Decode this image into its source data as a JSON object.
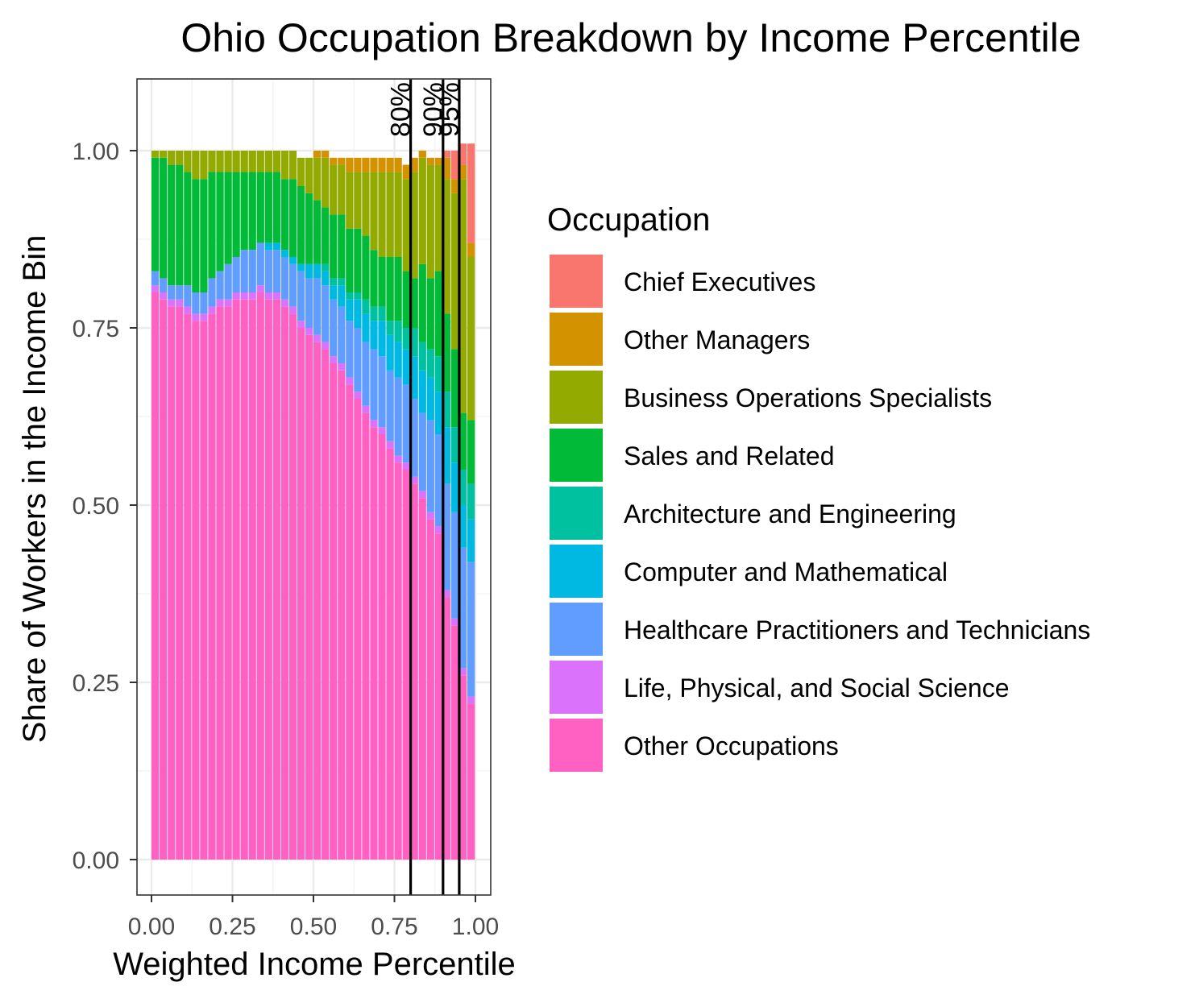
{
  "chart_data": {
    "type": "bar",
    "stacked": true,
    "title": "Ohio Occupation Breakdown by Income Percentile",
    "xlabel": "Weighted Income Percentile",
    "ylabel": "Share of Workers in the Income Bin",
    "xlim": [
      0,
      1
    ],
    "ylim": [
      0,
      1
    ],
    "x_ticks": [
      "0.00",
      "0.25",
      "0.50",
      "0.75",
      "1.00"
    ],
    "y_ticks": [
      "0.00",
      "0.25",
      "0.50",
      "0.75",
      "1.00"
    ],
    "grid": true,
    "legend_position": "right",
    "legend_title": "Occupation",
    "reference_lines": [
      {
        "x": 0.8,
        "label": "80%"
      },
      {
        "x": 0.9,
        "label": "90%"
      },
      {
        "x": 0.95,
        "label": "95%"
      }
    ],
    "x": [
      0.0,
      0.025,
      0.05,
      0.075,
      0.1,
      0.125,
      0.15,
      0.175,
      0.2,
      0.225,
      0.25,
      0.275,
      0.3,
      0.325,
      0.35,
      0.375,
      0.4,
      0.425,
      0.45,
      0.475,
      0.5,
      0.525,
      0.55,
      0.575,
      0.6,
      0.625,
      0.65,
      0.675,
      0.7,
      0.725,
      0.75,
      0.775,
      0.8,
      0.825,
      0.85,
      0.875,
      0.9,
      0.925,
      0.95,
      0.975
    ],
    "series": [
      {
        "name": "Other Occupations",
        "color": "#FF61C3",
        "values": [
          0.8,
          0.79,
          0.78,
          0.78,
          0.77,
          0.76,
          0.76,
          0.77,
          0.78,
          0.78,
          0.79,
          0.79,
          0.79,
          0.8,
          0.79,
          0.79,
          0.78,
          0.77,
          0.75,
          0.74,
          0.73,
          0.72,
          0.7,
          0.69,
          0.67,
          0.65,
          0.63,
          0.61,
          0.6,
          0.58,
          0.56,
          0.55,
          0.53,
          0.51,
          0.48,
          0.46,
          0.37,
          0.33,
          0.26,
          0.22
        ]
      },
      {
        "name": "Life, Physical, and Social Science",
        "color": "#DB72FB",
        "values": [
          0.01,
          0.01,
          0.01,
          0.01,
          0.01,
          0.01,
          0.01,
          0.01,
          0.01,
          0.01,
          0.01,
          0.01,
          0.01,
          0.01,
          0.01,
          0.01,
          0.01,
          0.01,
          0.01,
          0.01,
          0.01,
          0.01,
          0.01,
          0.01,
          0.01,
          0.01,
          0.01,
          0.01,
          0.01,
          0.01,
          0.01,
          0.01,
          0.01,
          0.01,
          0.01,
          0.01,
          0.01,
          0.01,
          0.01,
          0.01
        ]
      },
      {
        "name": "Healthcare Practitioners and Technicians",
        "color": "#619CFF",
        "values": [
          0.02,
          0.02,
          0.02,
          0.02,
          0.03,
          0.03,
          0.03,
          0.04,
          0.04,
          0.05,
          0.05,
          0.06,
          0.06,
          0.06,
          0.06,
          0.06,
          0.06,
          0.06,
          0.07,
          0.07,
          0.08,
          0.08,
          0.08,
          0.08,
          0.08,
          0.09,
          0.09,
          0.1,
          0.1,
          0.1,
          0.11,
          0.11,
          0.11,
          0.11,
          0.13,
          0.13,
          0.15,
          0.15,
          0.17,
          0.19
        ]
      },
      {
        "name": "Computer and Mathematical",
        "color": "#00B9E3",
        "values": [
          0.0,
          0.0,
          0.0,
          0.0,
          0.0,
          0.0,
          0.0,
          0.0,
          0.0,
          0.0,
          0.0,
          0.0,
          0.0,
          0.0,
          0.01,
          0.01,
          0.01,
          0.01,
          0.01,
          0.02,
          0.02,
          0.02,
          0.02,
          0.03,
          0.03,
          0.04,
          0.04,
          0.04,
          0.05,
          0.05,
          0.05,
          0.05,
          0.06,
          0.06,
          0.06,
          0.06,
          0.08,
          0.07,
          0.06,
          0.06
        ]
      },
      {
        "name": "Architecture and Engineering",
        "color": "#00C19F",
        "values": [
          0.0,
          0.0,
          0.0,
          0.0,
          0.0,
          0.0,
          0.0,
          0.0,
          0.0,
          0.0,
          0.0,
          0.0,
          0.0,
          0.0,
          0.0,
          0.0,
          0.0,
          0.0,
          0.0,
          0.0,
          0.0,
          0.01,
          0.01,
          0.01,
          0.01,
          0.01,
          0.02,
          0.02,
          0.02,
          0.02,
          0.03,
          0.03,
          0.04,
          0.04,
          0.04,
          0.05,
          0.05,
          0.05,
          0.05,
          0.05
        ]
      },
      {
        "name": "Sales and Related",
        "color": "#00BA38",
        "values": [
          0.16,
          0.17,
          0.17,
          0.17,
          0.16,
          0.16,
          0.16,
          0.15,
          0.14,
          0.13,
          0.12,
          0.11,
          0.11,
          0.1,
          0.1,
          0.1,
          0.1,
          0.11,
          0.11,
          0.1,
          0.09,
          0.08,
          0.09,
          0.09,
          0.09,
          0.09,
          0.09,
          0.08,
          0.07,
          0.09,
          0.09,
          0.08,
          0.07,
          0.11,
          0.1,
          0.12,
          0.11,
          0.11,
          0.08,
          0.09
        ]
      },
      {
        "name": "Business Operations Specialists",
        "color": "#93AA00",
        "values": [
          0.01,
          0.01,
          0.02,
          0.02,
          0.03,
          0.04,
          0.04,
          0.03,
          0.03,
          0.03,
          0.03,
          0.03,
          0.03,
          0.03,
          0.03,
          0.03,
          0.04,
          0.04,
          0.04,
          0.05,
          0.06,
          0.07,
          0.07,
          0.07,
          0.08,
          0.08,
          0.09,
          0.11,
          0.12,
          0.12,
          0.12,
          0.13,
          0.15,
          0.15,
          0.16,
          0.15,
          0.19,
          0.22,
          0.33,
          0.23
        ]
      },
      {
        "name": "Other Managers",
        "color": "#D39200",
        "values": [
          0.0,
          0.0,
          0.0,
          0.0,
          0.0,
          0.0,
          0.0,
          0.0,
          0.0,
          0.0,
          0.0,
          0.0,
          0.0,
          0.0,
          0.0,
          0.0,
          0.0,
          0.0,
          0.0,
          0.0,
          0.01,
          0.01,
          0.01,
          0.01,
          0.02,
          0.02,
          0.02,
          0.02,
          0.02,
          0.02,
          0.02,
          0.02,
          0.02,
          0.01,
          0.01,
          0.01,
          0.03,
          0.02,
          0.02,
          0.02
        ]
      },
      {
        "name": "Chief Executives",
        "color": "#F8766D",
        "values": [
          0.0,
          0.0,
          0.0,
          0.0,
          0.0,
          0.0,
          0.0,
          0.0,
          0.0,
          0.0,
          0.0,
          0.0,
          0.0,
          0.0,
          0.0,
          0.0,
          0.0,
          0.0,
          0.0,
          0.0,
          0.0,
          0.0,
          0.0,
          0.0,
          0.0,
          0.0,
          0.0,
          0.0,
          0.0,
          0.0,
          0.0,
          0.0,
          0.0,
          0.0,
          0.0,
          0.0,
          0.01,
          0.04,
          0.03,
          0.14
        ]
      }
    ],
    "legend_order": [
      "Chief Executives",
      "Other Managers",
      "Business Operations Specialists",
      "Sales and Related",
      "Architecture and Engineering",
      "Computer and Mathematical",
      "Healthcare Practitioners and Technicians",
      "Life, Physical, and Social Science",
      "Other Occupations"
    ]
  }
}
